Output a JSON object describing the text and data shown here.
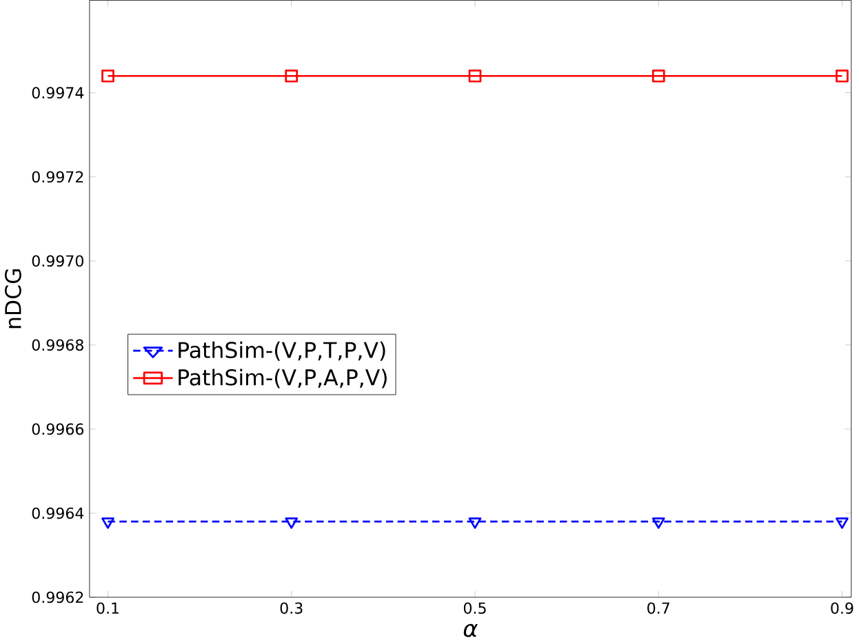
{
  "chart_data": {
    "type": "line",
    "xlabel": "α",
    "ylabel": "nDCG",
    "x": [
      0.1,
      0.3,
      0.5,
      0.7,
      0.9
    ],
    "series": [
      {
        "name": "PathSim-(V,P,T,P,V)",
        "color": "#0000ff",
        "values": [
          0.99638,
          0.99638,
          0.99638,
          0.99638,
          0.99638
        ],
        "marker": "triangle",
        "line_style": "dashed"
      },
      {
        "name": "PathSim-(V,P,A,P,V)",
        "color": "#ff0000",
        "values": [
          0.99744,
          0.99744,
          0.99744,
          0.99744,
          0.99744
        ],
        "marker": "square",
        "line_style": "solid"
      }
    ],
    "xlim": [
      0.08,
      0.91
    ],
    "xticks": [
      0.1,
      0.3,
      0.5,
      0.7,
      0.9
    ],
    "ylim": [
      0.9962,
      0.99762
    ],
    "yticks": [
      0.9962,
      0.9964,
      0.9966,
      0.9968,
      {
        "value": 0.997,
        "label": "0.9970"
      },
      0.9972,
      0.9974
    ],
    "legend": "left",
    "grid": false
  }
}
